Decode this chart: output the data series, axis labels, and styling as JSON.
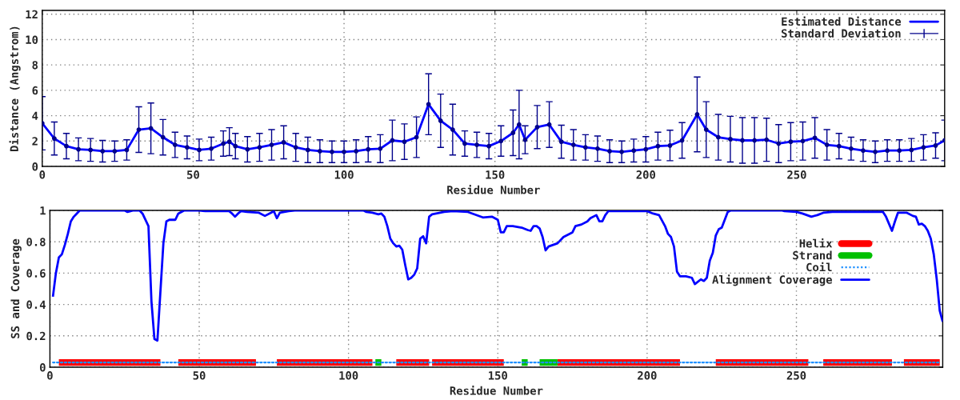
{
  "chart_data": [
    {
      "type": "line",
      "xlabel": "Residue Number",
      "ylabel": "Distance (Angstrom)",
      "xlim": [
        0,
        299
      ],
      "ylim": [
        0,
        12.3
      ],
      "xticks": [
        0,
        50,
        100,
        150,
        200,
        250
      ],
      "yticks": [
        0,
        2,
        4,
        6,
        8,
        10,
        12
      ],
      "grid": true,
      "legend": "top right",
      "series": [
        {
          "name": "Estimated Distance",
          "color": "#0000ff",
          "x": [
            0,
            4,
            8,
            12,
            16,
            20,
            24,
            28,
            32,
            36,
            40,
            44,
            48,
            52,
            56,
            60,
            62,
            64,
            68,
            72,
            76,
            80,
            84,
            88,
            92,
            96,
            100,
            104,
            108,
            112,
            116,
            120,
            124,
            128,
            132,
            136,
            140,
            144,
            148,
            152,
            156,
            158,
            160,
            164,
            168,
            172,
            176,
            180,
            184,
            188,
            192,
            196,
            200,
            204,
            208,
            212,
            217,
            220,
            224,
            228,
            232,
            236,
            240,
            244,
            248,
            252,
            256,
            260,
            264,
            268,
            272,
            276,
            280,
            284,
            288,
            292,
            296,
            299
          ],
          "values": [
            3.4,
            2.2,
            1.6,
            1.35,
            1.3,
            1.2,
            1.2,
            1.3,
            2.9,
            3.0,
            2.3,
            1.7,
            1.5,
            1.3,
            1.4,
            1.8,
            1.95,
            1.6,
            1.35,
            1.5,
            1.7,
            1.9,
            1.5,
            1.3,
            1.2,
            1.15,
            1.15,
            1.2,
            1.35,
            1.4,
            2.05,
            1.95,
            2.3,
            4.9,
            3.6,
            2.9,
            1.8,
            1.7,
            1.6,
            2.0,
            2.65,
            3.3,
            2.1,
            3.1,
            3.3,
            1.95,
            1.7,
            1.5,
            1.4,
            1.2,
            1.15,
            1.25,
            1.35,
            1.6,
            1.65,
            2.05,
            4.1,
            2.9,
            2.3,
            2.15,
            2.05,
            2.05,
            2.1,
            1.8,
            1.95,
            2.0,
            2.25,
            1.7,
            1.6,
            1.4,
            1.25,
            1.15,
            1.25,
            1.25,
            1.3,
            1.5,
            1.65,
            2.05
          ]
        },
        {
          "name": "Standard Deviation",
          "type": "scatter",
          "marker": "circle",
          "color": "#00008b",
          "x": [
            0,
            4,
            8,
            12,
            16,
            20,
            24,
            28,
            32,
            36,
            40,
            44,
            48,
            52,
            56,
            60,
            62,
            64,
            68,
            72,
            76,
            80,
            84,
            88,
            92,
            96,
            100,
            104,
            108,
            112,
            116,
            120,
            124,
            128,
            132,
            136,
            140,
            144,
            148,
            152,
            156,
            158,
            160,
            164,
            168,
            172,
            176,
            180,
            184,
            188,
            192,
            196,
            200,
            204,
            208,
            212,
            217,
            220,
            224,
            228,
            232,
            236,
            240,
            244,
            248,
            252,
            256,
            260,
            264,
            268,
            272,
            276,
            280,
            284,
            288,
            292,
            296,
            299
          ],
          "values": [
            3.4,
            2.2,
            1.6,
            1.35,
            1.3,
            1.2,
            1.2,
            1.3,
            2.9,
            3.0,
            2.3,
            1.7,
            1.5,
            1.3,
            1.4,
            1.8,
            1.95,
            1.6,
            1.35,
            1.5,
            1.7,
            1.9,
            1.5,
            1.3,
            1.2,
            1.15,
            1.15,
            1.2,
            1.35,
            1.4,
            2.05,
            1.95,
            2.3,
            4.9,
            3.6,
            2.9,
            1.8,
            1.7,
            1.6,
            2.0,
            2.65,
            3.3,
            2.1,
            3.1,
            3.3,
            1.95,
            1.7,
            1.5,
            1.4,
            1.2,
            1.15,
            1.25,
            1.35,
            1.6,
            1.65,
            2.05,
            4.1,
            2.9,
            2.3,
            2.15,
            2.05,
            2.05,
            2.1,
            1.8,
            1.95,
            2.0,
            2.25,
            1.7,
            1.6,
            1.4,
            1.25,
            1.15,
            1.25,
            1.25,
            1.3,
            1.5,
            1.65,
            2.05
          ],
          "errors": [
            2.1,
            1.3,
            1.0,
            0.9,
            0.9,
            0.85,
            0.8,
            0.8,
            1.8,
            2.0,
            1.4,
            1.0,
            0.9,
            0.85,
            0.9,
            1.0,
            1.1,
            1.0,
            1.0,
            1.1,
            1.2,
            1.3,
            1.1,
            1.0,
            0.9,
            0.85,
            0.85,
            0.9,
            1.0,
            1.1,
            1.6,
            1.4,
            1.6,
            2.4,
            2.1,
            2.0,
            1.0,
            1.0,
            1.0,
            1.2,
            1.8,
            2.7,
            1.1,
            1.7,
            1.8,
            1.3,
            1.2,
            1.0,
            1.0,
            0.9,
            0.85,
            0.9,
            1.0,
            1.1,
            1.2,
            1.4,
            2.95,
            2.2,
            1.8,
            1.8,
            1.8,
            1.8,
            1.7,
            1.5,
            1.5,
            1.5,
            1.6,
            1.2,
            1.0,
            0.9,
            0.85,
            0.85,
            0.85,
            0.85,
            0.9,
            1.0,
            1.0,
            1.6
          ]
        }
      ]
    },
    {
      "type": "line",
      "xlabel": "Residue Number",
      "ylabel": "SS and Coverage",
      "xlim": [
        0,
        299
      ],
      "ylim": [
        0,
        1
      ],
      "xticks": [
        0,
        50,
        100,
        150,
        200,
        250
      ],
      "yticks": [
        0,
        0.2,
        0.4,
        0.6,
        0.8,
        1
      ],
      "grid": true,
      "legend": "top right",
      "series": [
        {
          "name": "Helix",
          "color": "#ff0000",
          "x": [
            3,
            37,
            null,
            43,
            69,
            null,
            76,
            108,
            null,
            116,
            127,
            null,
            128,
            152,
            null,
            170,
            211,
            null,
            223,
            254,
            null,
            259,
            282,
            null,
            286,
            298
          ],
          "values": [
            0.03,
            0.03,
            null,
            0.03,
            0.03,
            null,
            0.03,
            0.03,
            null,
            0.03,
            0.03,
            null,
            0.03,
            0.03,
            null,
            0.03,
            0.03,
            null,
            0.03,
            0.03,
            null,
            0.03,
            0.03,
            null,
            0.03,
            0.03
          ]
        },
        {
          "name": "Strand",
          "color": "#00c000",
          "x": [
            109,
            111,
            null,
            158,
            160,
            null,
            164,
            170
          ],
          "values": [
            0.03,
            0.03,
            null,
            0.03,
            0.03,
            null,
            0.03,
            0.03
          ]
        },
        {
          "name": "Coil",
          "color": "#1e90ff",
          "line_style": "dotted",
          "x": [
            1,
            298
          ],
          "values": [
            0.03,
            0.03
          ]
        },
        {
          "name": "Alignment Coverage",
          "color": "#0000ff",
          "x": [
            1,
            2,
            3,
            4,
            5,
            6,
            7,
            8,
            9,
            10,
            25,
            26,
            28,
            30,
            31,
            33,
            34,
            35,
            36,
            37,
            38,
            39,
            40,
            42,
            43,
            45,
            50,
            52,
            60,
            61,
            62,
            63,
            64,
            66,
            70,
            72,
            74,
            75,
            76,
            77,
            80,
            82,
            105,
            106,
            108,
            110,
            111,
            112,
            113,
            114,
            115,
            116,
            117,
            118,
            119,
            120,
            121,
            122,
            123,
            124,
            125,
            126,
            127,
            128,
            132,
            135,
            140,
            145,
            148,
            150,
            151,
            152,
            153,
            155,
            158,
            160,
            161,
            162,
            163,
            164,
            165,
            166,
            167,
            170,
            172,
            175,
            176,
            178,
            180,
            181,
            183,
            184,
            185,
            186,
            187,
            190,
            200,
            202,
            204,
            206,
            207,
            208,
            209,
            210,
            211,
            213,
            215,
            216,
            218,
            219,
            220,
            221,
            222,
            223,
            224,
            225,
            227,
            228,
            245,
            246,
            250,
            252,
            255,
            257,
            259,
            262,
            270,
            279,
            280,
            282,
            283,
            284,
            287,
            289,
            290,
            291,
            292,
            293,
            294,
            295,
            296,
            297,
            298,
            299
          ],
          "values": [
            0.45,
            0.6,
            0.7,
            0.72,
            0.78,
            0.85,
            0.93,
            0.96,
            0.98,
            1.0,
            1.0,
            0.99,
            1.0,
            1.0,
            0.98,
            0.9,
            0.42,
            0.18,
            0.17,
            0.48,
            0.79,
            0.93,
            0.94,
            0.94,
            0.98,
            1.0,
            1.0,
            0.995,
            0.995,
            0.98,
            0.96,
            0.98,
            0.995,
            0.99,
            0.985,
            0.965,
            0.985,
            0.995,
            0.95,
            0.985,
            0.995,
            1.0,
            1.0,
            0.99,
            0.985,
            0.975,
            0.98,
            0.96,
            0.9,
            0.82,
            0.79,
            0.77,
            0.775,
            0.75,
            0.65,
            0.56,
            0.57,
            0.59,
            0.63,
            0.82,
            0.835,
            0.79,
            0.96,
            0.975,
            0.99,
            0.995,
            0.99,
            0.955,
            0.96,
            0.94,
            0.86,
            0.86,
            0.9,
            0.9,
            0.89,
            0.875,
            0.87,
            0.9,
            0.9,
            0.885,
            0.83,
            0.745,
            0.77,
            0.79,
            0.83,
            0.86,
            0.9,
            0.91,
            0.93,
            0.95,
            0.97,
            0.93,
            0.93,
            0.97,
            0.995,
            0.995,
            0.995,
            0.98,
            0.97,
            0.9,
            0.85,
            0.83,
            0.77,
            0.61,
            0.58,
            0.58,
            0.57,
            0.53,
            0.56,
            0.55,
            0.57,
            0.68,
            0.73,
            0.84,
            0.88,
            0.89,
            0.99,
            1.0,
            1.0,
            0.995,
            0.99,
            0.98,
            0.96,
            0.97,
            0.985,
            0.99,
            0.99,
            0.99,
            0.96,
            0.87,
            0.93,
            0.985,
            0.985,
            0.965,
            0.96,
            0.91,
            0.915,
            0.9,
            0.87,
            0.82,
            0.72,
            0.56,
            0.36,
            0.29
          ]
        }
      ]
    }
  ]
}
